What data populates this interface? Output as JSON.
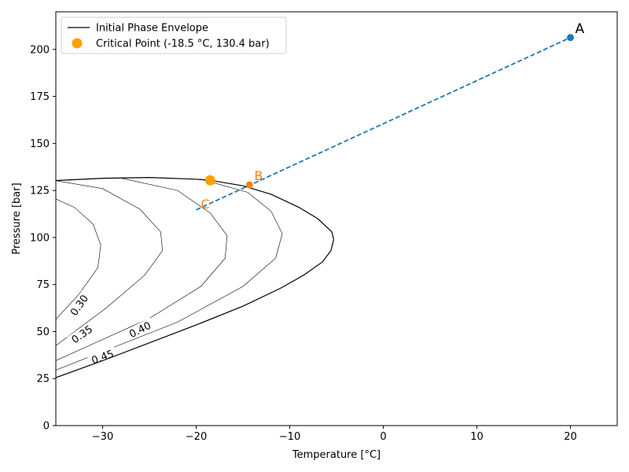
{
  "chart_data": {
    "type": "line",
    "xlabel": "Temperature [°C]",
    "ylabel": "Pressure [bar]",
    "xlim": [
      -35,
      25
    ],
    "ylim": [
      0,
      220
    ],
    "xticks": [
      -30,
      -20,
      -10,
      0,
      10,
      20
    ],
    "yticks": [
      0,
      25,
      50,
      75,
      100,
      125,
      150,
      175,
      200
    ],
    "legend_position": "upper-left",
    "legend": [
      {
        "label": "Initial Phase Envelope",
        "kind": "line",
        "color": "#000000"
      },
      {
        "label": "Critical Point (-18.5 °C, 130.4 bar)",
        "kind": "marker",
        "color": "#ff9f00"
      }
    ],
    "envelope": {
      "color": "#000000",
      "bubble": [
        [
          -35,
          130.3
        ],
        [
          -30,
          131.5
        ],
        [
          -25,
          131.9
        ],
        [
          -20,
          131.0
        ],
        [
          -18.5,
          130.4
        ],
        [
          -15,
          127.5
        ],
        [
          -12,
          123.0
        ],
        [
          -9,
          116.0
        ],
        [
          -7,
          110.0
        ],
        [
          -5.5,
          103.0
        ],
        [
          -5.3,
          99.0
        ]
      ],
      "dew": [
        [
          -5.3,
          99.0
        ],
        [
          -5.6,
          93.0
        ],
        [
          -6.5,
          87.0
        ],
        [
          -8.5,
          80.0
        ],
        [
          -11,
          73.0
        ],
        [
          -15,
          63.5
        ],
        [
          -20,
          53.5
        ],
        [
          -25,
          44.0
        ],
        [
          -30,
          34.5
        ],
        [
          -35,
          25.5
        ]
      ]
    },
    "quality_lines": [
      {
        "label": "0.30",
        "points": [
          [
            -35,
            120.5
          ],
          [
            -33,
            116.0
          ],
          [
            -31,
            107.0
          ],
          [
            -30.2,
            96.0
          ],
          [
            -30.5,
            84.0
          ],
          [
            -32.5,
            70.0
          ],
          [
            -35,
            56.5
          ]
        ],
        "label_at": [
          -32.5,
          64
        ],
        "label_angle": -55
      },
      {
        "label": "0.35",
        "points": [
          [
            -35,
            130.2
          ],
          [
            -30,
            126.0
          ],
          [
            -26,
            115.0
          ],
          [
            -23.8,
            103.0
          ],
          [
            -23.6,
            93.0
          ],
          [
            -25.5,
            80.0
          ],
          [
            -29.5,
            63.0
          ],
          [
            -35,
            42.5
          ]
        ],
        "label_at": [
          -32.2,
          48.5
        ],
        "label_angle": -35
      },
      {
        "label": "0.40",
        "points": [
          [
            -28,
            131.5
          ],
          [
            -22,
            125.0
          ],
          [
            -18.5,
            113.0
          ],
          [
            -16.7,
            101.0
          ],
          [
            -16.9,
            89.0
          ],
          [
            -19.5,
            74.0
          ],
          [
            -25,
            57.0
          ],
          [
            -35,
            34.5
          ]
        ],
        "label_at": [
          -26.0,
          51.0
        ],
        "label_angle": -27
      },
      {
        "label": "0.45",
        "points": [
          [
            -19.5,
            131.0
          ],
          [
            -14.5,
            124.0
          ],
          [
            -12,
            114.0
          ],
          [
            -10.8,
            102.0
          ],
          [
            -11.5,
            89.0
          ],
          [
            -15,
            74.0
          ],
          [
            -22,
            55.0
          ],
          [
            -35,
            29.5
          ]
        ],
        "label_at": [
          -30.0,
          36.5
        ],
        "label_angle": -20
      }
    ],
    "critical_point": {
      "x": -18.5,
      "y": 130.4,
      "color": "#ff9f00"
    },
    "path": {
      "color": "#1f77b4",
      "style": "dashed",
      "from": [
        -20,
        114.7
      ],
      "to": [
        20,
        206.3
      ]
    },
    "points": [
      {
        "name": "A",
        "x": 20,
        "y": 206.3,
        "color": "#1f77b4",
        "label_color": "#000000"
      },
      {
        "name": "B",
        "x": -14.3,
        "y": 128.0,
        "color": "#ff7f0e",
        "label_color": "#ff7f0e"
      },
      {
        "name": "C",
        "x": -20.0,
        "y": 114.7,
        "color": "#ff7f0e",
        "label_color": "#ff7f0e",
        "marker": false
      }
    ]
  }
}
